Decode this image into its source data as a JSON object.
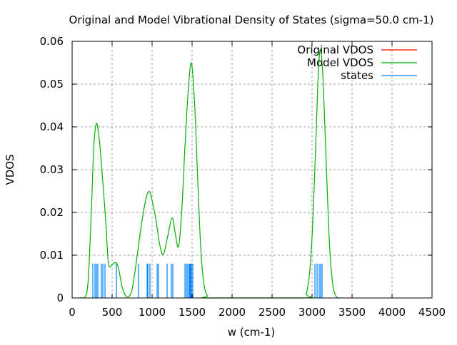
{
  "chart_data": {
    "type": "line",
    "title": "Original and Model Vibrational Density of States (sigma=50.0 cm-1)",
    "xlabel": "w (cm-1)",
    "ylabel": "VDOS",
    "xlim": [
      0,
      4500
    ],
    "ylim": [
      0,
      0.06
    ],
    "xticks": [
      "0",
      "500",
      "1000",
      "1500",
      "2000",
      "2500",
      "3000",
      "3500",
      "4000",
      "4500"
    ],
    "xtick_values": [
      0,
      500,
      1000,
      1500,
      2000,
      2500,
      3000,
      3500,
      4000,
      4500
    ],
    "yticks": [
      "0",
      "0.01",
      "0.02",
      "0.03",
      "0.04",
      "0.05",
      "0.06"
    ],
    "ytick_values": [
      0,
      0.01,
      0.02,
      0.03,
      0.04,
      0.05,
      0.06
    ],
    "grid": true,
    "legend_position": "top-right",
    "series": [
      {
        "name": "Original VDOS",
        "color": "#ff0000",
        "style": "line",
        "x": [],
        "y": []
      },
      {
        "name": "Model VDOS",
        "color": "#00b000",
        "style": "line",
        "x": [
          100,
          160,
          200,
          240,
          270,
          304,
          340,
          380,
          420,
          455,
          500,
          545,
          580,
          620,
          660,
          705,
          750,
          800,
          850,
          900,
          940,
          973,
          1010,
          1050,
          1100,
          1143,
          1190,
          1250,
          1290,
          1330,
          1370,
          1410,
          1450,
          1491,
          1530,
          1570,
          1610,
          1650,
          1690,
          1720,
          2900,
          2930,
          2970,
          3010,
          3050,
          3080,
          3107,
          3140,
          3180,
          3220,
          3260,
          3300,
          3330
        ],
        "y": [
          0,
          0.0001,
          0.004,
          0.02,
          0.035,
          0.0408,
          0.037,
          0.028,
          0.018,
          0.008,
          0.0078,
          0.0083,
          0.007,
          0.003,
          0.0008,
          0.0003,
          0.002,
          0.008,
          0.015,
          0.021,
          0.0243,
          0.0247,
          0.022,
          0.018,
          0.012,
          0.0102,
          0.014,
          0.0187,
          0.015,
          0.012,
          0.02,
          0.035,
          0.048,
          0.055,
          0.046,
          0.028,
          0.011,
          0.003,
          0.0005,
          0,
          0,
          0.001,
          0.006,
          0.018,
          0.038,
          0.053,
          0.058,
          0.05,
          0.03,
          0.012,
          0.003,
          0.0004,
          0
        ]
      },
      {
        "name": "states",
        "color": "#0080ff",
        "style": "impulses",
        "x": [
          259,
          286,
          304,
          321,
          366,
          384,
          411,
          554,
          830,
          938,
          947,
          973,
          1063,
          1080,
          1188,
          1241,
          1259,
          1411,
          1429,
          1446,
          1464,
          1473,
          1482,
          1491,
          1509,
          3036,
          3063,
          3089,
          3107,
          3125
        ],
        "height": 0.008
      }
    ]
  }
}
